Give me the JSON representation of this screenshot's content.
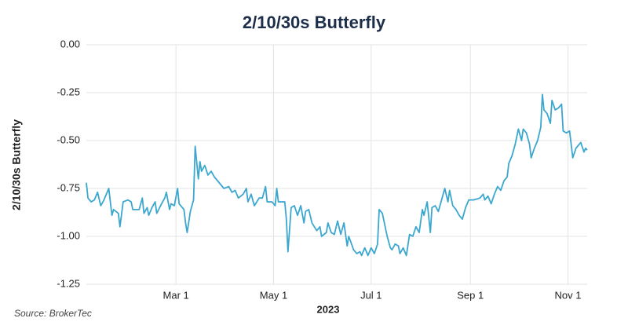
{
  "chart_data": {
    "type": "line",
    "title": "2/10/30s Butterfly",
    "ylabel": "2/10/30s Butterfly",
    "xlabel": "2023",
    "source": "Source: BrokerTec",
    "color": "#3ba7cf",
    "grid": true,
    "xlim": [
      4,
      317
    ],
    "xticks": [
      {
        "value": 60,
        "label": "Mar 1"
      },
      {
        "value": 121,
        "label": "May 1"
      },
      {
        "value": 182,
        "label": "Jul 1"
      },
      {
        "value": 244,
        "label": "Sep 1"
      },
      {
        "value": 305,
        "label": "Nov 1"
      }
    ],
    "ylim": [
      -1.25,
      0
    ],
    "yticks": [
      {
        "value": 0,
        "label": "0.00"
      },
      -0.25,
      {
        "value": -0.5,
        "label": "-0.50"
      },
      -0.75,
      {
        "value": -1,
        "label": "-1.00"
      },
      -1.25
    ],
    "x": [
      4,
      5,
      7,
      9,
      11,
      13,
      15,
      18,
      20,
      21,
      24,
      25,
      27,
      30,
      32,
      33,
      37,
      39,
      40,
      42,
      43,
      45,
      47,
      48,
      51,
      53,
      54,
      56,
      57,
      59,
      61,
      62,
      65,
      66,
      67,
      69,
      71,
      72,
      74,
      75,
      76,
      78,
      80,
      82,
      84,
      86,
      88,
      90,
      93,
      95,
      97,
      99,
      102,
      104,
      105,
      107,
      109,
      112,
      114,
      116,
      117,
      120,
      122,
      123,
      124,
      128,
      129,
      130,
      132,
      134,
      136,
      138,
      140,
      141,
      143,
      145,
      148,
      150,
      151,
      154,
      155,
      157,
      159,
      161,
      163,
      165,
      167,
      168,
      171,
      173,
      175,
      176,
      178,
      180,
      182,
      184,
      186,
      187,
      189,
      192,
      194,
      195,
      197,
      199,
      200,
      202,
      204,
      206,
      208,
      210,
      212,
      214,
      215,
      217,
      219,
      220,
      222,
      224,
      226,
      228,
      230,
      231,
      233,
      235,
      237,
      239,
      241,
      243,
      246,
      250,
      252,
      253,
      255,
      257,
      259,
      261,
      263,
      265,
      267,
      268,
      270,
      272,
      274,
      276,
      277,
      279,
      281,
      282,
      284,
      286,
      288,
      289,
      290,
      292,
      294,
      295,
      297,
      299,
      301,
      302,
      304,
      306,
      308,
      310,
      312,
      313,
      315,
      316,
      317
    ],
    "values": [
      -0.72,
      -0.8,
      -0.82,
      -0.81,
      -0.77,
      -0.84,
      -0.81,
      -0.75,
      -0.89,
      -0.86,
      -0.88,
      -0.95,
      -0.82,
      -0.81,
      -0.82,
      -0.86,
      -0.86,
      -0.8,
      -0.88,
      -0.85,
      -0.89,
      -0.85,
      -0.82,
      -0.88,
      -0.83,
      -0.8,
      -0.77,
      -0.86,
      -0.83,
      -0.84,
      -0.75,
      -0.83,
      -0.86,
      -0.93,
      -0.98,
      -0.87,
      -0.81,
      -0.53,
      -0.7,
      -0.61,
      -0.66,
      -0.63,
      -0.68,
      -0.66,
      -0.69,
      -0.71,
      -0.73,
      -0.75,
      -0.74,
      -0.77,
      -0.76,
      -0.8,
      -0.78,
      -0.75,
      -0.82,
      -0.78,
      -0.84,
      -0.8,
      -0.8,
      -0.74,
      -0.82,
      -0.82,
      -0.84,
      -0.75,
      -0.82,
      -0.82,
      -0.91,
      -1.08,
      -0.85,
      -0.84,
      -0.89,
      -0.84,
      -0.93,
      -0.87,
      -0.86,
      -0.93,
      -0.97,
      -0.95,
      -1.0,
      -0.98,
      -0.93,
      -0.98,
      -0.99,
      -0.92,
      -0.99,
      -0.93,
      -1.05,
      -1.0,
      -1.07,
      -1.09,
      -1.08,
      -1.1,
      -1.06,
      -1.1,
      -1.06,
      -1.09,
      -1.04,
      -0.86,
      -0.88,
      -1.0,
      -1.06,
      -1.07,
      -1.04,
      -1.05,
      -1.09,
      -1.06,
      -1.1,
      -0.99,
      -1.0,
      -0.95,
      -0.98,
      -0.86,
      -0.89,
      -0.82,
      -0.98,
      -0.85,
      -0.84,
      -0.87,
      -0.81,
      -0.75,
      -0.82,
      -0.76,
      -0.84,
      -0.86,
      -0.89,
      -0.91,
      -0.85,
      -0.81,
      -0.81,
      -0.8,
      -0.78,
      -0.81,
      -0.79,
      -0.83,
      -0.78,
      -0.74,
      -0.76,
      -0.71,
      -0.69,
      -0.62,
      -0.58,
      -0.52,
      -0.44,
      -0.5,
      -0.44,
      -0.46,
      -0.52,
      -0.59,
      -0.54,
      -0.5,
      -0.43,
      -0.26,
      -0.34,
      -0.36,
      -0.41,
      -0.29,
      -0.34,
      -0.33,
      -0.31,
      -0.45,
      -0.46,
      -0.45,
      -0.59,
      -0.54,
      -0.52,
      -0.51,
      -0.56,
      -0.54,
      -0.55
    ]
  }
}
